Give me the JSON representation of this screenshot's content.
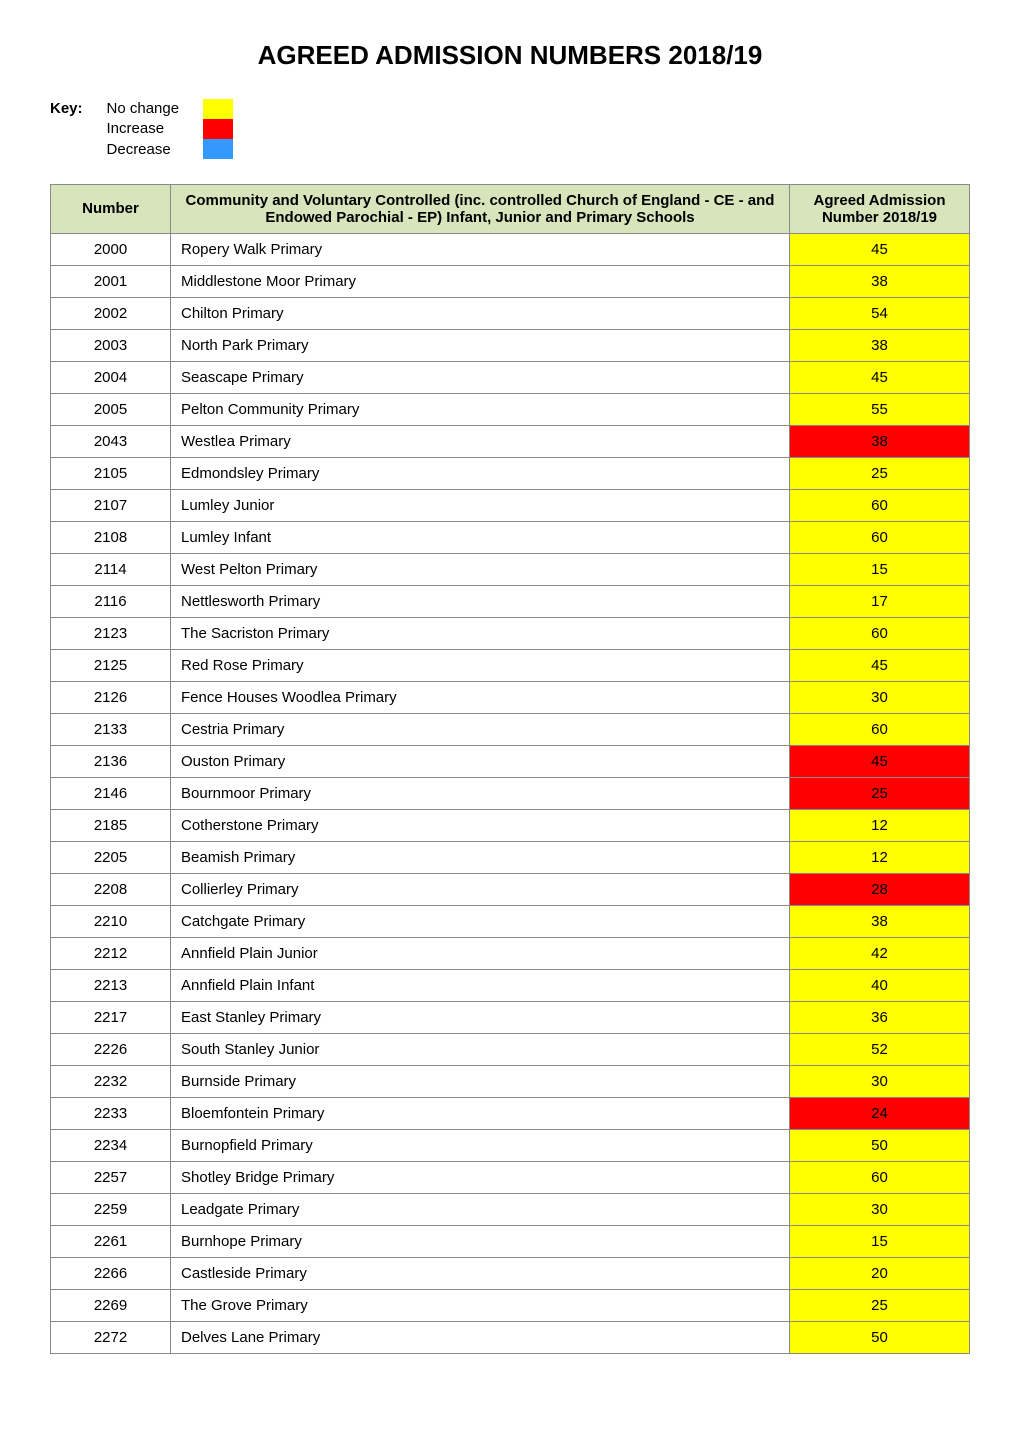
{
  "title": "AGREED ADMISSION NUMBERS 2018/19",
  "key": {
    "label": "Key:",
    "items": [
      "No change",
      "Increase",
      "Decrease"
    ],
    "swatch_colors": [
      "#ffff00",
      "#ff0000",
      "#3399ff"
    ]
  },
  "table": {
    "header_bg": "#d7e4bc",
    "columns": [
      {
        "label": "Number"
      },
      {
        "label": "Community and Voluntary Controlled\n(inc. controlled Church of England - CE - and Endowed Parochial - EP) Infant, Junior and Primary Schools"
      },
      {
        "label": "Agreed Admission Number 2018/19"
      }
    ],
    "status_colors": {
      "no_change": "#ffff00",
      "increase": "#ff0000",
      "decrease": "#3399ff"
    },
    "rows": [
      {
        "num": "2000",
        "name": "Ropery Walk Primary",
        "adm": "45",
        "status": "no_change"
      },
      {
        "num": "2001",
        "name": "Middlestone Moor Primary",
        "adm": "38",
        "status": "no_change"
      },
      {
        "num": "2002",
        "name": "Chilton Primary",
        "adm": "54",
        "status": "no_change"
      },
      {
        "num": "2003",
        "name": "North Park Primary",
        "adm": "38",
        "status": "no_change"
      },
      {
        "num": "2004",
        "name": "Seascape Primary",
        "adm": "45",
        "status": "no_change"
      },
      {
        "num": "2005",
        "name": "Pelton Community Primary",
        "adm": "55",
        "status": "no_change"
      },
      {
        "num": "2043",
        "name": "Westlea Primary",
        "adm": "38",
        "status": "increase"
      },
      {
        "num": "2105",
        "name": "Edmondsley Primary",
        "adm": "25",
        "status": "no_change"
      },
      {
        "num": "2107",
        "name": "Lumley Junior",
        "adm": "60",
        "status": "no_change"
      },
      {
        "num": "2108",
        "name": "Lumley Infant",
        "adm": "60",
        "status": "no_change"
      },
      {
        "num": "2114",
        "name": "West Pelton Primary",
        "adm": "15",
        "status": "no_change"
      },
      {
        "num": "2116",
        "name": "Nettlesworth Primary",
        "adm": "17",
        "status": "no_change"
      },
      {
        "num": "2123",
        "name": "The Sacriston Primary",
        "adm": "60",
        "status": "no_change"
      },
      {
        "num": "2125",
        "name": "Red Rose Primary",
        "adm": "45",
        "status": "no_change"
      },
      {
        "num": "2126",
        "name": "Fence Houses Woodlea Primary",
        "adm": "30",
        "status": "no_change"
      },
      {
        "num": "2133",
        "name": "Cestria Primary",
        "adm": "60",
        "status": "no_change"
      },
      {
        "num": "2136",
        "name": "Ouston Primary",
        "adm": "45",
        "status": "increase"
      },
      {
        "num": "2146",
        "name": "Bournmoor Primary",
        "adm": "25",
        "status": "increase"
      },
      {
        "num": "2185",
        "name": "Cotherstone Primary",
        "adm": "12",
        "status": "no_change"
      },
      {
        "num": "2205",
        "name": "Beamish Primary",
        "adm": "12",
        "status": "no_change"
      },
      {
        "num": "2208",
        "name": "Collierley Primary",
        "adm": "28",
        "status": "increase"
      },
      {
        "num": "2210",
        "name": "Catchgate Primary",
        "adm": "38",
        "status": "no_change"
      },
      {
        "num": "2212",
        "name": "Annfield Plain Junior",
        "adm": "42",
        "status": "no_change"
      },
      {
        "num": "2213",
        "name": "Annfield Plain Infant",
        "adm": "40",
        "status": "no_change"
      },
      {
        "num": "2217",
        "name": "East Stanley Primary",
        "adm": "36",
        "status": "no_change"
      },
      {
        "num": "2226",
        "name": "South Stanley Junior",
        "adm": "52",
        "status": "no_change"
      },
      {
        "num": "2232",
        "name": "Burnside Primary",
        "adm": "30",
        "status": "no_change"
      },
      {
        "num": "2233",
        "name": "Bloemfontein Primary",
        "adm": "24",
        "status": "increase"
      },
      {
        "num": "2234",
        "name": "Burnopfield Primary",
        "adm": "50",
        "status": "no_change"
      },
      {
        "num": "2257",
        "name": "Shotley Bridge Primary",
        "adm": "60",
        "status": "no_change"
      },
      {
        "num": "2259",
        "name": "Leadgate Primary",
        "adm": "30",
        "status": "no_change"
      },
      {
        "num": "2261",
        "name": "Burnhope Primary",
        "adm": "15",
        "status": "no_change"
      },
      {
        "num": "2266",
        "name": "Castleside Primary",
        "adm": "20",
        "status": "no_change"
      },
      {
        "num": "2269",
        "name": "The Grove Primary",
        "adm": "25",
        "status": "no_change"
      },
      {
        "num": "2272",
        "name": "Delves Lane Primary",
        "adm": "50",
        "status": "no_change"
      }
    ]
  }
}
